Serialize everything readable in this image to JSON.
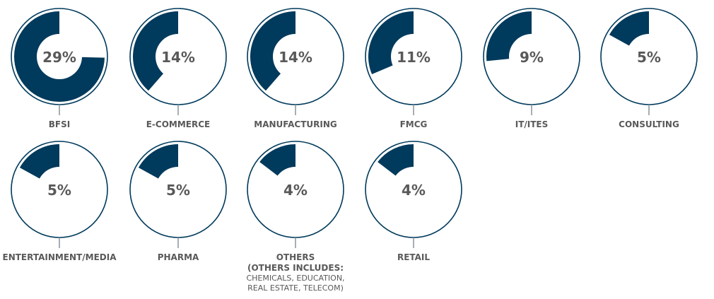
{
  "chart_data": {
    "type": "donut",
    "colors": {
      "fill": "#003a5c",
      "ring": "#003a5c",
      "text": "#595959",
      "stem": "#7f8c95",
      "background": "#ffffff"
    },
    "items": [
      {
        "label": "BFSI",
        "value": 29,
        "display": "29%"
      },
      {
        "label": "E-COMMERCE",
        "value": 14,
        "display": "14%"
      },
      {
        "label": "MANUFACTURING",
        "value": 14,
        "display": "14%"
      },
      {
        "label": "FMCG",
        "value": 11,
        "display": "11%"
      },
      {
        "label": "IT/ITES",
        "value": 9,
        "display": "9%"
      },
      {
        "label": "CONSULTING",
        "value": 5,
        "display": "5%"
      },
      {
        "label": "ENTERTAINMENT/MEDIA",
        "value": 5,
        "display": "5%"
      },
      {
        "label": "PHARMA",
        "value": 5,
        "display": "5%"
      },
      {
        "label": "OTHERS",
        "value": 4,
        "display": "4%",
        "note": [
          "(OTHERS INCLUDES:",
          "CHEMICALS, EDUCATION,",
          "REAL ESTATE, TELECOM)"
        ]
      },
      {
        "label": "RETAIL",
        "value": 4,
        "display": "4%"
      }
    ]
  }
}
